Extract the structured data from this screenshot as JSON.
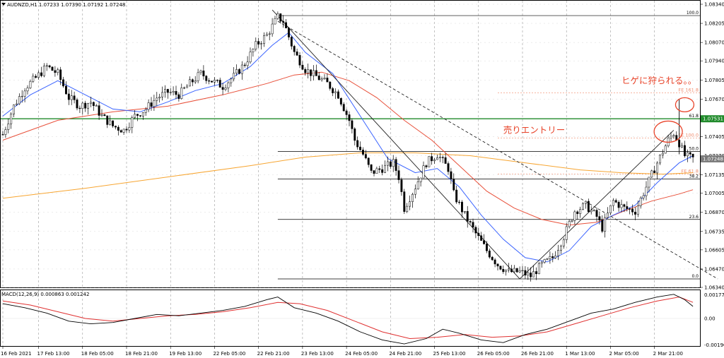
{
  "colors": {
    "candle": "#000000",
    "ma_fast": "#3a63ff",
    "ma_mid": "#e8503a",
    "ma_slow": "#f7a531",
    "resistance": "#1f8a2a",
    "annotation": "#e8442a",
    "fe_level": "#f08a6b",
    "macd_line": "#000000",
    "macd_signal": "#e03030",
    "grid": "#9a9a9a",
    "price_tag_green": "#1f8a2a",
    "price_tag_grey": "#7a7a7a"
  },
  "chart_data": {
    "type": "candlestick",
    "symbol_header": "AUDNZD,H1  1.07233 1.07390 1.07192 1.07248",
    "price_axis": {
      "range": [
        1.0634,
        1.0834
      ],
      "ticks": [
        "1.08340",
        "1.08205",
        "1.08070",
        "1.07940",
        "1.07805",
        "1.07670",
        "1.07405",
        "1.07270",
        "1.07135",
        "1.07005",
        "1.06870",
        "1.06735",
        "1.06605",
        "1.06470",
        "1.06340"
      ]
    },
    "time_axis": {
      "range_hours": [
        0,
        252
      ],
      "ticks": [
        {
          "label": "16 Feb 2021",
          "h": 0
        },
        {
          "label": "17 Feb 13:00",
          "h": 13
        },
        {
          "label": "18 Feb 05:00",
          "h": 29
        },
        {
          "label": "18 Feb 21:00",
          "h": 45
        },
        {
          "label": "19 Feb 13:00",
          "h": 61
        },
        {
          "label": "22 Feb 05:00",
          "h": 77
        },
        {
          "label": "22 Feb 21:00",
          "h": 93
        },
        {
          "label": "23 Feb 13:00",
          "h": 109
        },
        {
          "label": "24 Feb 05:00",
          "h": 125
        },
        {
          "label": "24 Feb 21:00",
          "h": 141
        },
        {
          "label": "25 Feb 13:00",
          "h": 157
        },
        {
          "label": "26 Feb 05:00",
          "h": 173
        },
        {
          "label": "26 Feb 21:00",
          "h": 189
        },
        {
          "label": "1 Mar 13:00",
          "h": 205
        },
        {
          "label": "2 Mar 05:00",
          "h": 221
        },
        {
          "label": "2 Mar 21:00",
          "h": 237
        }
      ]
    },
    "close_path": [
      [
        0,
        1.0742
      ],
      [
        4,
        1.0762
      ],
      [
        8,
        1.0775
      ],
      [
        12,
        1.0782
      ],
      [
        16,
        1.079
      ],
      [
        20,
        1.0785
      ],
      [
        24,
        1.0768
      ],
      [
        28,
        1.0762
      ],
      [
        32,
        1.0765
      ],
      [
        36,
        1.0755
      ],
      [
        40,
        1.0748
      ],
      [
        44,
        1.0745
      ],
      [
        48,
        1.0755
      ],
      [
        52,
        1.076
      ],
      [
        56,
        1.0768
      ],
      [
        60,
        1.0772
      ],
      [
        64,
        1.077
      ],
      [
        68,
        1.0778
      ],
      [
        72,
        1.0785
      ],
      [
        76,
        1.078
      ],
      [
        80,
        1.0776
      ],
      [
        84,
        1.0783
      ],
      [
        88,
        1.0792
      ],
      [
        92,
        1.0805
      ],
      [
        96,
        1.0812
      ],
      [
        100,
        1.0825
      ],
      [
        102,
        1.0822
      ],
      [
        106,
        1.08
      ],
      [
        110,
        1.0788
      ],
      [
        114,
        1.0783
      ],
      [
        118,
        1.0778
      ],
      [
        122,
        1.077
      ],
      [
        126,
        1.0752
      ],
      [
        128,
        1.0738
      ],
      [
        131,
        1.0728
      ],
      [
        134,
        1.0715
      ],
      [
        138,
        1.0718
      ],
      [
        142,
        1.0722
      ],
      [
        144,
        1.0712
      ],
      [
        146,
        1.069
      ],
      [
        150,
        1.0705
      ],
      [
        154,
        1.0722
      ],
      [
        158,
        1.0728
      ],
      [
        162,
        1.0718
      ],
      [
        164,
        1.07
      ],
      [
        168,
        1.0685
      ],
      [
        172,
        1.0672
      ],
      [
        176,
        1.066
      ],
      [
        180,
        1.065
      ],
      [
        184,
        1.0645
      ],
      [
        188,
        1.0645
      ],
      [
        192,
        1.0642
      ],
      [
        196,
        1.065
      ],
      [
        200,
        1.0655
      ],
      [
        204,
        1.067
      ],
      [
        208,
        1.0688
      ],
      [
        212,
        1.0692
      ],
      [
        216,
        1.0684
      ],
      [
        218,
        1.0676
      ],
      [
        222,
        1.0695
      ],
      [
        226,
        1.069
      ],
      [
        230,
        1.0688
      ],
      [
        234,
        1.0705
      ],
      [
        238,
        1.0722
      ],
      [
        242,
        1.0738
      ],
      [
        244,
        1.0743
      ],
      [
        246,
        1.0736
      ],
      [
        248,
        1.0727
      ],
      [
        251,
        1.0725
      ]
    ],
    "ma_fast": [
      [
        0,
        1.0755
      ],
      [
        10,
        1.077
      ],
      [
        20,
        1.078
      ],
      [
        30,
        1.077
      ],
      [
        40,
        1.076
      ],
      [
        50,
        1.0758
      ],
      [
        60,
        1.0765
      ],
      [
        70,
        1.0773
      ],
      [
        80,
        1.0778
      ],
      [
        90,
        1.079
      ],
      [
        98,
        1.0805
      ],
      [
        104,
        1.0814
      ],
      [
        110,
        1.08
      ],
      [
        120,
        1.0785
      ],
      [
        130,
        1.0755
      ],
      [
        140,
        1.0725
      ],
      [
        150,
        1.0715
      ],
      [
        158,
        1.0718
      ],
      [
        166,
        1.0705
      ],
      [
        174,
        1.0685
      ],
      [
        182,
        1.0668
      ],
      [
        190,
        1.0655
      ],
      [
        198,
        1.0652
      ],
      [
        206,
        1.066
      ],
      [
        214,
        1.0677
      ],
      [
        222,
        1.0685
      ],
      [
        230,
        1.0692
      ],
      [
        238,
        1.0708
      ],
      [
        246,
        1.0722
      ],
      [
        251,
        1.0727
      ]
    ],
    "ma_mid": [
      [
        0,
        1.0738
      ],
      [
        20,
        1.0752
      ],
      [
        40,
        1.0758
      ],
      [
        60,
        1.0762
      ],
      [
        80,
        1.077
      ],
      [
        96,
        1.0778
      ],
      [
        106,
        1.0784
      ],
      [
        116,
        1.0786
      ],
      [
        126,
        1.078
      ],
      [
        136,
        1.0768
      ],
      [
        146,
        1.0752
      ],
      [
        156,
        1.0738
      ],
      [
        166,
        1.072
      ],
      [
        176,
        1.0702
      ],
      [
        186,
        1.069
      ],
      [
        196,
        1.0682
      ],
      [
        206,
        1.0678
      ],
      [
        216,
        1.068
      ],
      [
        226,
        1.0688
      ],
      [
        236,
        1.0695
      ],
      [
        246,
        1.07
      ],
      [
        251,
        1.0703
      ]
    ],
    "ma_slow": [
      [
        0,
        1.0697
      ],
      [
        30,
        1.0704
      ],
      [
        60,
        1.0712
      ],
      [
        90,
        1.072
      ],
      [
        110,
        1.0726
      ],
      [
        130,
        1.0729
      ],
      [
        150,
        1.0729
      ],
      [
        170,
        1.0727
      ],
      [
        190,
        1.0722
      ],
      [
        210,
        1.0717
      ],
      [
        225,
        1.0715
      ],
      [
        240,
        1.0714
      ],
      [
        251,
        1.0715
      ]
    ],
    "levels": [
      {
        "label": "100.0",
        "price": 1.0826,
        "kind": "fib"
      },
      {
        "label": "FE 161.8",
        "price": 1.07715,
        "kind": "fe"
      },
      {
        "label": "61.8",
        "price": 1.07531,
        "kind": "fib"
      },
      {
        "label": "FE 100.0",
        "price": 1.07395,
        "kind": "fe"
      },
      {
        "label": "50.0",
        "price": 1.073,
        "kind": "fib"
      },
      {
        "label": "FE 61.8",
        "price": 1.0714,
        "kind": "fe"
      },
      {
        "label": "38.2",
        "price": 1.07105,
        "kind": "fib"
      },
      {
        "label": "23.6",
        "price": 1.0682,
        "kind": "fib"
      },
      {
        "label": "0.0",
        "price": 1.064,
        "kind": "fib"
      }
    ],
    "resistance_price": 1.07531,
    "price_tags": [
      {
        "label": "1.07531",
        "price": 1.07531,
        "style": "green"
      },
      {
        "label": "1.07248",
        "price": 1.07248,
        "style": "grey"
      }
    ],
    "trend_lines": [
      {
        "style": "solid",
        "from": [
          98,
          1.083
        ],
        "to": [
          188,
          1.064
        ]
      },
      {
        "style": "solid",
        "from": [
          188,
          1.064
        ],
        "to": [
          244,
          1.0745
        ]
      },
      {
        "style": "dashed",
        "from": [
          100,
          1.0822
        ],
        "to": [
          260,
          1.064
        ]
      }
    ],
    "annotations": [
      {
        "text": "ヒゲに狩られる。。",
        "at": [
          225,
          1.0778
        ]
      },
      {
        "text": "売りエントリー",
        "at": [
          182,
          1.0743
        ]
      }
    ],
    "circles": [
      {
        "at": [
          248,
          1.0763
        ]
      },
      {
        "at": [
          242,
          1.0744
        ]
      }
    ],
    "macd": {
      "header": "MACD(12,26,9) 0.000863 0.001242",
      "ticks": [
        "0.001774",
        "0.00",
        "-0.001965"
      ],
      "range": [
        -0.00205,
        0.00205
      ],
      "macd_line": [
        [
          0,
          0.0011
        ],
        [
          8,
          0.0008
        ],
        [
          16,
          0.0004
        ],
        [
          24,
          -0.0002
        ],
        [
          32,
          -0.0004
        ],
        [
          40,
          -0.0003
        ],
        [
          48,
          0.0
        ],
        [
          56,
          0.0003
        ],
        [
          64,
          0.0002
        ],
        [
          72,
          0.0004
        ],
        [
          80,
          0.0006
        ],
        [
          88,
          0.0009
        ],
        [
          96,
          0.0014
        ],
        [
          100,
          0.0016
        ],
        [
          106,
          0.0008
        ],
        [
          114,
          0.0004
        ],
        [
          122,
          -0.0002
        ],
        [
          130,
          -0.001
        ],
        [
          138,
          -0.0016
        ],
        [
          146,
          -0.0019
        ],
        [
          154,
          -0.0015
        ],
        [
          160,
          -0.0008
        ],
        [
          166,
          -0.0011
        ],
        [
          174,
          -0.0016
        ],
        [
          182,
          -0.0018
        ],
        [
          190,
          -0.0012
        ],
        [
          198,
          -0.0008
        ],
        [
          206,
          -0.0002
        ],
        [
          214,
          0.0004
        ],
        [
          222,
          0.0007
        ],
        [
          230,
          0.0012
        ],
        [
          238,
          0.0016
        ],
        [
          244,
          0.0018
        ],
        [
          248,
          0.0014
        ],
        [
          251,
          0.0009
        ]
      ],
      "signal_line": [
        [
          0,
          0.0013
        ],
        [
          10,
          0.001
        ],
        [
          20,
          0.0005
        ],
        [
          30,
          0.0
        ],
        [
          40,
          -0.0002
        ],
        [
          50,
          0.0
        ],
        [
          60,
          0.0002
        ],
        [
          70,
          0.0003
        ],
        [
          80,
          0.0005
        ],
        [
          90,
          0.0008
        ],
        [
          100,
          0.0012
        ],
        [
          108,
          0.0011
        ],
        [
          118,
          0.0006
        ],
        [
          128,
          -0.0002
        ],
        [
          138,
          -0.001
        ],
        [
          148,
          -0.0015
        ],
        [
          158,
          -0.0014
        ],
        [
          168,
          -0.0012
        ],
        [
          178,
          -0.0014
        ],
        [
          188,
          -0.0013
        ],
        [
          198,
          -0.001
        ],
        [
          208,
          -0.0004
        ],
        [
          218,
          0.0002
        ],
        [
          228,
          0.0008
        ],
        [
          238,
          0.0013
        ],
        [
          246,
          0.0016
        ],
        [
          251,
          0.0012
        ]
      ]
    }
  }
}
